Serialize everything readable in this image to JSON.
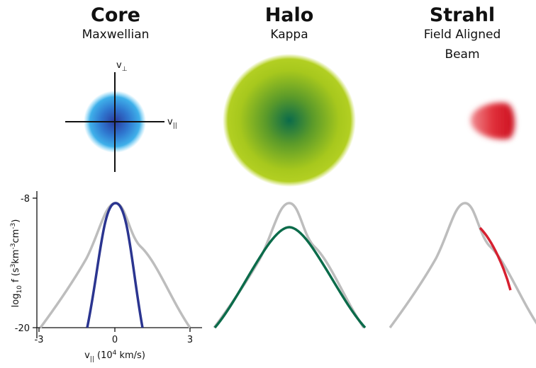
{
  "panels": [
    {
      "title": "Core",
      "subtitle": [
        "Maxwellian"
      ]
    },
    {
      "title": "Halo",
      "subtitle": [
        "Kappa"
      ]
    },
    {
      "title": "Strahl",
      "subtitle": [
        "Field Aligned",
        "Beam"
      ]
    }
  ],
  "velocity_axes": {
    "perp": {
      "base": "v",
      "sub": "⊥"
    },
    "par": {
      "base": "v",
      "sub": "||"
    }
  },
  "plot": {
    "y_label": [
      "log",
      "10",
      " f (s",
      "3",
      "km",
      "-3",
      "cm",
      "-3",
      ")"
    ],
    "x_label": [
      "v",
      "||",
      " (10",
      "4",
      " km/s)"
    ],
    "y_ticks": [
      "-8",
      "-20"
    ],
    "x_ticks": [
      "-3",
      "0",
      "3"
    ]
  }
}
